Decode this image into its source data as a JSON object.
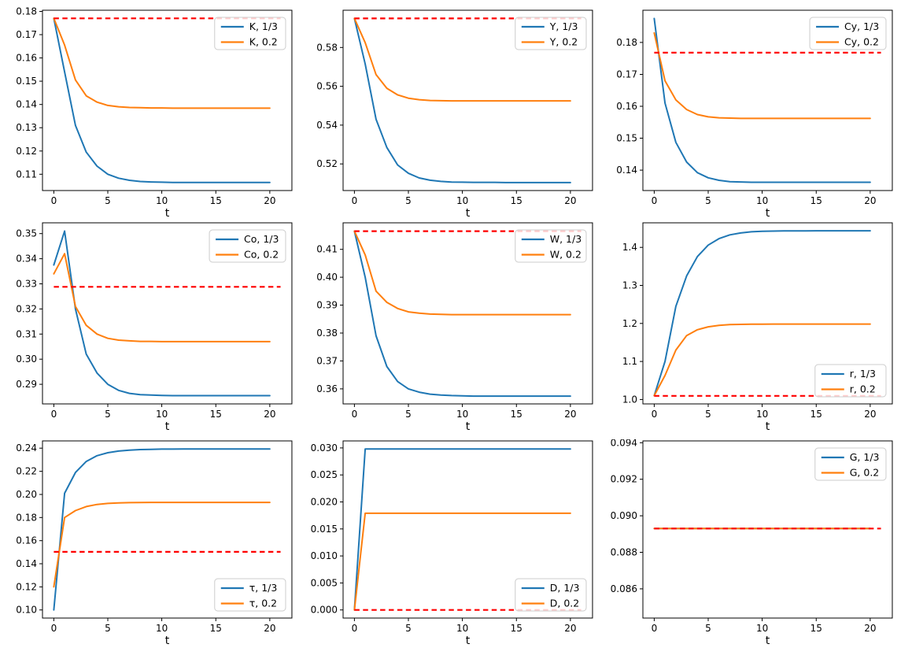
{
  "figure": {
    "background": "#ffffff",
    "grid_rows": 3,
    "grid_cols": 3,
    "xlabel": "t"
  },
  "colors": {
    "series_third": "#1f77b4",
    "series_point2": "#ff7f0e",
    "steady_state_dashed": "#ff0000",
    "legend_border": "#cccccc",
    "spine": "#000000",
    "text": "#000000"
  },
  "t_values": [
    0,
    1,
    2,
    3,
    4,
    5,
    6,
    7,
    8,
    9,
    10,
    11,
    12,
    13,
    14,
    15,
    16,
    17,
    18,
    19,
    20
  ],
  "chart_data": [
    {
      "id": "K",
      "type": "line",
      "title": "",
      "xlabel": "t",
      "ylabel": "",
      "grid": false,
      "xlim": [
        -1.05,
        22.05
      ],
      "ylim": [
        0.103,
        0.1805
      ],
      "xticks": [
        0,
        5,
        10,
        15,
        20
      ],
      "xtick_labels": [
        "0",
        "5",
        "10",
        "15",
        "20"
      ],
      "yticks": [
        0.11,
        0.12,
        0.13,
        0.14,
        0.15,
        0.16,
        0.17,
        0.18
      ],
      "ytick_labels": [
        "0.11",
        "0.12",
        "0.13",
        "0.14",
        "0.15",
        "0.16",
        "0.17",
        "0.18"
      ],
      "series": [
        {
          "name": "K, 1/3",
          "color": "#1f77b4",
          "values": [
            0.177,
            0.154,
            0.131,
            0.1195,
            0.1135,
            0.11,
            0.1083,
            0.1074,
            0.1069,
            0.1067,
            0.1066,
            0.1065,
            0.1065,
            0.1065,
            0.1065,
            0.1065,
            0.1065,
            0.1065,
            0.1065,
            0.1065,
            0.1065
          ]
        },
        {
          "name": "K, 0.2",
          "color": "#ff7f0e",
          "values": [
            0.177,
            0.1655,
            0.1505,
            0.1437,
            0.141,
            0.1396,
            0.139,
            0.1387,
            0.1386,
            0.1385,
            0.1385,
            0.1384,
            0.1384,
            0.1384,
            0.1384,
            0.1384,
            0.1384,
            0.1384,
            0.1384,
            0.1384,
            0.1384
          ]
        }
      ],
      "dashed_line": {
        "y": 0.177,
        "x_start": 0,
        "x_end": 21,
        "color": "#ff0000",
        "style": "dashed"
      },
      "legend": {
        "loc": "upper-right",
        "entries": [
          "K, 1/3",
          "K, 0.2"
        ]
      }
    },
    {
      "id": "Y",
      "type": "line",
      "title": "",
      "xlabel": "t",
      "ylabel": "",
      "grid": false,
      "xlim": [
        -1.05,
        22.05
      ],
      "ylim": [
        0.5063,
        0.5992
      ],
      "xticks": [
        0,
        5,
        10,
        15,
        20
      ],
      "xtick_labels": [
        "0",
        "5",
        "10",
        "15",
        "20"
      ],
      "yticks": [
        0.52,
        0.54,
        0.56,
        0.58
      ],
      "ytick_labels": [
        "0.52",
        "0.54",
        "0.56",
        "0.58"
      ],
      "series": [
        {
          "name": "Y, 1/3",
          "color": "#1f77b4",
          "values": [
            0.595,
            0.5715,
            0.543,
            0.5285,
            0.5195,
            0.5152,
            0.5128,
            0.5116,
            0.511,
            0.5107,
            0.5106,
            0.5105,
            0.5105,
            0.5105,
            0.5104,
            0.5104,
            0.5104,
            0.5104,
            0.5104,
            0.5104,
            0.5104
          ]
        },
        {
          "name": "Y, 0.2",
          "color": "#ff7f0e",
          "values": [
            0.595,
            0.5825,
            0.566,
            0.559,
            0.5556,
            0.5539,
            0.5531,
            0.5527,
            0.5526,
            0.5525,
            0.5525,
            0.5525,
            0.5525,
            0.5525,
            0.5525,
            0.5525,
            0.5525,
            0.5525,
            0.5525,
            0.5525,
            0.5525
          ]
        }
      ],
      "dashed_line": {
        "y": 0.595,
        "x_start": 0,
        "x_end": 21,
        "color": "#ff0000",
        "style": "dashed"
      },
      "legend": {
        "loc": "upper-right",
        "entries": [
          "Y, 1/3",
          "Y, 0.2"
        ]
      }
    },
    {
      "id": "Cy",
      "type": "line",
      "title": "",
      "xlabel": "t",
      "ylabel": "",
      "grid": false,
      "xlim": [
        -1.05,
        22.05
      ],
      "ylim": [
        0.1336,
        0.1901
      ],
      "xticks": [
        0,
        5,
        10,
        15,
        20
      ],
      "xtick_labels": [
        "0",
        "5",
        "10",
        "15",
        "20"
      ],
      "yticks": [
        0.14,
        0.15,
        0.16,
        0.17,
        0.18
      ],
      "ytick_labels": [
        "0.14",
        "0.15",
        "0.16",
        "0.17",
        "0.18"
      ],
      "series": [
        {
          "name": "Cy, 1/3",
          "color": "#1f77b4",
          "values": [
            0.1875,
            0.161,
            0.1487,
            0.1425,
            0.1392,
            0.1376,
            0.1368,
            0.1364,
            0.1363,
            0.1362,
            0.1362,
            0.1362,
            0.1362,
            0.1362,
            0.1362,
            0.1362,
            0.1362,
            0.1362,
            0.1362,
            0.1362,
            0.1362
          ]
        },
        {
          "name": "Cy, 0.2",
          "color": "#ff7f0e",
          "values": [
            0.183,
            0.168,
            0.162,
            0.159,
            0.1574,
            0.1567,
            0.1564,
            0.1563,
            0.1562,
            0.1562,
            0.1562,
            0.1562,
            0.1562,
            0.1562,
            0.1562,
            0.1562,
            0.1562,
            0.1562,
            0.1562,
            0.1562,
            0.1562
          ]
        }
      ],
      "dashed_line": {
        "y": 0.1768,
        "x_start": 0,
        "x_end": 21,
        "color": "#ff0000",
        "style": "dashed"
      },
      "legend": {
        "loc": "upper-right",
        "entries": [
          "Cy, 1/3",
          "Cy, 0.2"
        ]
      }
    },
    {
      "id": "Co",
      "type": "line",
      "title": "",
      "xlabel": "t",
      "ylabel": "",
      "grid": false,
      "xlim": [
        -1.05,
        22.05
      ],
      "ylim": [
        0.2822,
        0.3543
      ],
      "xticks": [
        0,
        5,
        10,
        15,
        20
      ],
      "xtick_labels": [
        "0",
        "5",
        "10",
        "15",
        "20"
      ],
      "yticks": [
        0.29,
        0.3,
        0.31,
        0.32,
        0.33,
        0.34,
        0.35
      ],
      "ytick_labels": [
        "0.29",
        "0.30",
        "0.31",
        "0.32",
        "0.33",
        "0.34",
        "0.35"
      ],
      "series": [
        {
          "name": "Co, 1/3",
          "color": "#1f77b4",
          "values": [
            0.3375,
            0.351,
            0.32,
            0.302,
            0.2945,
            0.29,
            0.2876,
            0.2864,
            0.2859,
            0.2857,
            0.2856,
            0.2855,
            0.2855,
            0.2855,
            0.2855,
            0.2855,
            0.2855,
            0.2855,
            0.2855,
            0.2855,
            0.2855
          ]
        },
        {
          "name": "Co, 0.2",
          "color": "#ff7f0e",
          "values": [
            0.334,
            0.342,
            0.321,
            0.3135,
            0.31,
            0.3083,
            0.3076,
            0.3073,
            0.3071,
            0.3071,
            0.307,
            0.307,
            0.307,
            0.307,
            0.307,
            0.307,
            0.307,
            0.307,
            0.307,
            0.307,
            0.307
          ]
        }
      ],
      "dashed_line": {
        "y": 0.3288,
        "x_start": 0,
        "x_end": 21,
        "color": "#ff0000",
        "style": "dashed"
      },
      "legend": {
        "loc": "upper-right",
        "entries": [
          "Co, 1/3",
          "Co, 0.2"
        ]
      }
    },
    {
      "id": "W",
      "type": "line",
      "title": "",
      "xlabel": "t",
      "ylabel": "",
      "grid": false,
      "xlim": [
        -1.05,
        22.05
      ],
      "ylim": [
        0.3546,
        0.4195
      ],
      "xticks": [
        0,
        5,
        10,
        15,
        20
      ],
      "xtick_labels": [
        "0",
        "5",
        "10",
        "15",
        "20"
      ],
      "yticks": [
        0.36,
        0.37,
        0.38,
        0.39,
        0.4,
        0.41
      ],
      "ytick_labels": [
        "0.36",
        "0.37",
        "0.38",
        "0.39",
        "0.40",
        "0.41"
      ],
      "series": [
        {
          "name": "W, 1/3",
          "color": "#1f77b4",
          "values": [
            0.4165,
            0.4,
            0.379,
            0.368,
            0.3626,
            0.36,
            0.3588,
            0.3581,
            0.3578,
            0.3576,
            0.3575,
            0.3574,
            0.3574,
            0.3574,
            0.3574,
            0.3574,
            0.3574,
            0.3574,
            0.3574,
            0.3574,
            0.3574
          ]
        },
        {
          "name": "W, 0.2",
          "color": "#ff7f0e",
          "values": [
            0.4165,
            0.408,
            0.395,
            0.391,
            0.3888,
            0.3876,
            0.3871,
            0.3868,
            0.3867,
            0.3866,
            0.3866,
            0.3866,
            0.3866,
            0.3866,
            0.3866,
            0.3866,
            0.3866,
            0.3866,
            0.3866,
            0.3866,
            0.3866
          ]
        }
      ],
      "dashed_line": {
        "y": 0.4165,
        "x_start": 0,
        "x_end": 21,
        "color": "#ff0000",
        "style": "dashed"
      },
      "legend": {
        "loc": "upper-right",
        "entries": [
          "W, 1/3",
          "W, 0.2"
        ]
      }
    },
    {
      "id": "r",
      "type": "line",
      "title": "",
      "xlabel": "t",
      "ylabel": "",
      "grid": false,
      "xlim": [
        -1.05,
        22.05
      ],
      "ylim": [
        0.9883,
        1.4647
      ],
      "xticks": [
        0,
        5,
        10,
        15,
        20
      ],
      "xtick_labels": [
        "0",
        "5",
        "10",
        "15",
        "20"
      ],
      "yticks": [
        1.0,
        1.1,
        1.2,
        1.3,
        1.4
      ],
      "ytick_labels": [
        "1.0",
        "1.1",
        "1.2",
        "1.3",
        "1.4"
      ],
      "series": [
        {
          "name": "r, 1/3",
          "color": "#1f77b4",
          "values": [
            1.01,
            1.1,
            1.245,
            1.325,
            1.376,
            1.406,
            1.423,
            1.433,
            1.438,
            1.441,
            1.4425,
            1.443,
            1.4433,
            1.4435,
            1.4436,
            1.4437,
            1.4437,
            1.4437,
            1.4437,
            1.4437,
            1.4437
          ]
        },
        {
          "name": "r, 0.2",
          "color": "#ff7f0e",
          "values": [
            1.01,
            1.063,
            1.13,
            1.168,
            1.1835,
            1.191,
            1.195,
            1.1968,
            1.1976,
            1.198,
            1.1982,
            1.1983,
            1.1983,
            1.1983,
            1.1983,
            1.1983,
            1.1983,
            1.1983,
            1.1983,
            1.1983,
            1.1983
          ]
        }
      ],
      "dashed_line": {
        "y": 1.0095,
        "x_start": 0,
        "x_end": 21,
        "color": "#ff0000",
        "style": "dashed"
      },
      "legend": {
        "loc": "lower-right",
        "entries": [
          "r, 1/3",
          "r, 0.2"
        ]
      }
    },
    {
      "id": "τ",
      "type": "line",
      "title": "",
      "xlabel": "t",
      "ylabel": "",
      "grid": false,
      "xlim": [
        -1.05,
        22.05
      ],
      "ylim": [
        0.093,
        0.2463
      ],
      "xticks": [
        0,
        5,
        10,
        15,
        20
      ],
      "xtick_labels": [
        "0",
        "5",
        "10",
        "15",
        "20"
      ],
      "yticks": [
        0.1,
        0.12,
        0.14,
        0.16,
        0.18,
        0.2,
        0.22,
        0.24
      ],
      "ytick_labels": [
        "0.10",
        "0.12",
        "0.14",
        "0.16",
        "0.18",
        "0.20",
        "0.22",
        "0.24"
      ],
      "series": [
        {
          "name": "τ, 1/3",
          "color": "#1f77b4",
          "values": [
            0.1,
            0.201,
            0.219,
            0.2285,
            0.2335,
            0.2361,
            0.2375,
            0.2383,
            0.2388,
            0.239,
            0.2392,
            0.2392,
            0.2393,
            0.2393,
            0.2393,
            0.2393,
            0.2393,
            0.2393,
            0.2393,
            0.2393,
            0.2393
          ]
        },
        {
          "name": "τ, 0.2",
          "color": "#ff7f0e",
          "values": [
            0.12,
            0.18,
            0.186,
            0.1895,
            0.1913,
            0.1922,
            0.1927,
            0.1929,
            0.193,
            0.1931,
            0.1931,
            0.1931,
            0.1931,
            0.1931,
            0.1931,
            0.1931,
            0.1931,
            0.1931,
            0.1931,
            0.1931,
            0.1931
          ]
        }
      ],
      "dashed_line": {
        "y": 0.1503,
        "x_start": 0,
        "x_end": 21,
        "color": "#ff0000",
        "style": "dashed"
      },
      "legend": {
        "loc": "lower-right",
        "entries": [
          "τ, 1/3",
          "τ, 0.2"
        ]
      }
    },
    {
      "id": "D",
      "type": "line",
      "title": "",
      "xlabel": "t",
      "ylabel": "",
      "grid": false,
      "xlim": [
        -1.05,
        22.05
      ],
      "ylim": [
        -0.0015,
        0.0313
      ],
      "xticks": [
        0,
        5,
        10,
        15,
        20
      ],
      "xtick_labels": [
        "0",
        "5",
        "10",
        "15",
        "20"
      ],
      "yticks": [
        0.0,
        0.005,
        0.01,
        0.015,
        0.02,
        0.025,
        0.03
      ],
      "ytick_labels": [
        "0.000",
        "0.005",
        "0.010",
        "0.015",
        "0.020",
        "0.025",
        "0.030"
      ],
      "series": [
        {
          "name": "D, 1/3",
          "color": "#1f77b4",
          "values": [
            0,
            0.0298,
            0.0298,
            0.0298,
            0.0298,
            0.0298,
            0.0298,
            0.0298,
            0.0298,
            0.0298,
            0.0298,
            0.0298,
            0.0298,
            0.0298,
            0.0298,
            0.0298,
            0.0298,
            0.0298,
            0.0298,
            0.0298,
            0.0298
          ]
        },
        {
          "name": "D, 0.2",
          "color": "#ff7f0e",
          "values": [
            0,
            0.0179,
            0.0179,
            0.0179,
            0.0179,
            0.0179,
            0.0179,
            0.0179,
            0.0179,
            0.0179,
            0.0179,
            0.0179,
            0.0179,
            0.0179,
            0.0179,
            0.0179,
            0.0179,
            0.0179,
            0.0179,
            0.0179,
            0.0179
          ]
        }
      ],
      "dashed_line": {
        "y": 0.0,
        "x_start": 0,
        "x_end": 21,
        "color": "#ff0000",
        "style": "dashed"
      },
      "legend": {
        "loc": "lower-right",
        "entries": [
          "D, 1/3",
          "D, 0.2"
        ]
      }
    },
    {
      "id": "G",
      "type": "line",
      "title": "",
      "xlabel": "t",
      "ylabel": "",
      "grid": false,
      "xlim": [
        -1.05,
        22.05
      ],
      "ylim": [
        0.0844,
        0.0941
      ],
      "xticks": [
        0,
        5,
        10,
        15,
        20
      ],
      "xtick_labels": [
        "0",
        "5",
        "10",
        "15",
        "20"
      ],
      "yticks": [
        0.086,
        0.088,
        0.09,
        0.092,
        0.094
      ],
      "ytick_labels": [
        "0.086",
        "0.088",
        "0.090",
        "0.092",
        "0.094"
      ],
      "series": [
        {
          "name": "G, 1/3",
          "color": "#1f77b4",
          "values": [
            0.0893,
            0.0893,
            0.0893,
            0.0893,
            0.0893,
            0.0893,
            0.0893,
            0.0893,
            0.0893,
            0.0893,
            0.0893,
            0.0893,
            0.0893,
            0.0893,
            0.0893,
            0.0893,
            0.0893,
            0.0893,
            0.0893,
            0.0893,
            0.0893
          ]
        },
        {
          "name": "G, 0.2",
          "color": "#ff7f0e",
          "values": [
            0.0893,
            0.0893,
            0.0893,
            0.0893,
            0.0893,
            0.0893,
            0.0893,
            0.0893,
            0.0893,
            0.0893,
            0.0893,
            0.0893,
            0.0893,
            0.0893,
            0.0893,
            0.0893,
            0.0893,
            0.0893,
            0.0893,
            0.0893,
            0.0893
          ]
        }
      ],
      "dashed_line": {
        "y": 0.0893,
        "x_start": 0,
        "x_end": 21,
        "color": "#ff0000",
        "style": "dashed"
      },
      "legend": {
        "loc": "upper-right",
        "entries": [
          "G, 1/3",
          "G, 0.2"
        ]
      }
    }
  ]
}
